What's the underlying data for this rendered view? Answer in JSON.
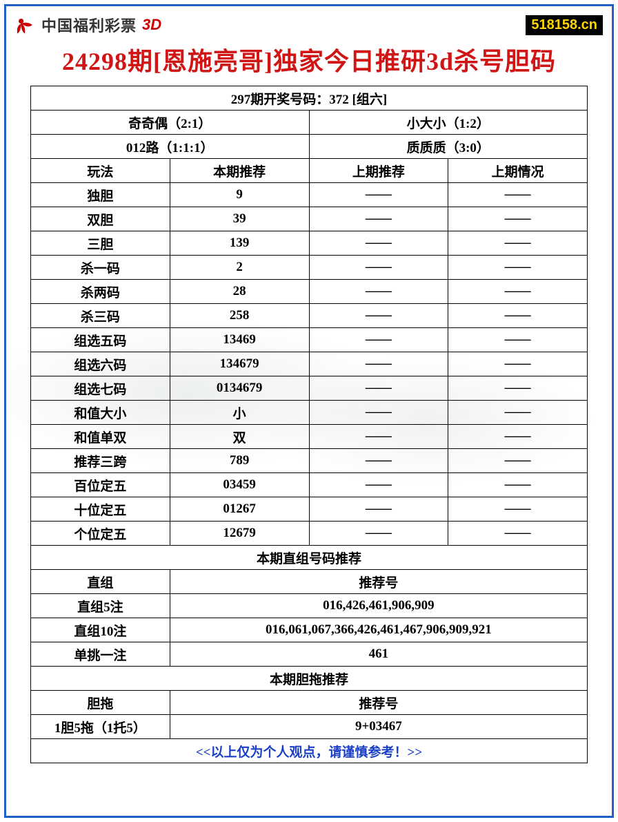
{
  "header": {
    "brand": "中国福利彩票",
    "suffix": "3D",
    "badge": "518158.cn"
  },
  "title": "24298期[恩施亮哥]独家今日推研3d杀号胆码",
  "topRow": "297期开奖号码：372 [组六]",
  "pairRow1": {
    "left": "奇奇偶（2:1）",
    "right": "小大小（1:2）"
  },
  "pairRow2": {
    "left": "012路（1:1:1）",
    "right": "质质质（3:0）"
  },
  "headers": {
    "c1": "玩法",
    "c2": "本期推荐",
    "c3": "上期推荐",
    "c4": "上期情况"
  },
  "dash": "——",
  "rows": [
    {
      "name": "独胆",
      "val": "9"
    },
    {
      "name": "双胆",
      "val": "39"
    },
    {
      "name": "三胆",
      "val": "139"
    },
    {
      "name": "杀一码",
      "val": "2"
    },
    {
      "name": "杀两码",
      "val": "28"
    },
    {
      "name": "杀三码",
      "val": "258"
    },
    {
      "name": "组选五码",
      "val": "13469"
    },
    {
      "name": "组选六码",
      "val": "134679"
    },
    {
      "name": "组选七码",
      "val": "0134679"
    },
    {
      "name": "和值大小",
      "val": "小"
    },
    {
      "name": "和值单双",
      "val": "双"
    },
    {
      "name": "推荐三跨",
      "val": "789"
    },
    {
      "name": "百位定五",
      "val": "03459"
    },
    {
      "name": "十位定五",
      "val": "01267"
    },
    {
      "name": "个位定五",
      "val": "12679"
    }
  ],
  "section1": {
    "title": "本期直组号码推荐",
    "header": {
      "left": "直组",
      "right": "推荐号"
    },
    "rows": [
      {
        "left": "直组5注",
        "right": "016,426,461,906,909"
      },
      {
        "left": "直组10注",
        "right": "016,061,067,366,426,461,467,906,909,921"
      },
      {
        "left": "单挑一注",
        "right": "461"
      }
    ]
  },
  "section2": {
    "title": "本期胆拖推荐",
    "header": {
      "left": "胆拖",
      "right": "推荐号"
    },
    "rows": [
      {
        "left": "1胆5拖（1托5）",
        "right": "9+03467"
      }
    ]
  },
  "footer": "<<以上仅为个人观点，请谨慎参考！>>",
  "colors": {
    "border": "#1e5fc7",
    "title": "#d01515",
    "footer": "#1a3fc7",
    "badgeBg": "#000000",
    "badgeFg": "#ffd400",
    "logo": "#cc0000"
  }
}
